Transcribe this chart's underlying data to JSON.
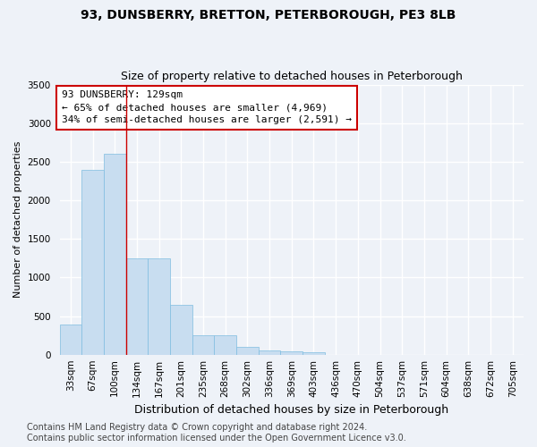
{
  "title": "93, DUNSBERRY, BRETTON, PETERBOROUGH, PE3 8LB",
  "subtitle": "Size of property relative to detached houses in Peterborough",
  "xlabel": "Distribution of detached houses by size in Peterborough",
  "ylabel": "Number of detached properties",
  "bar_labels": [
    "33sqm",
    "67sqm",
    "100sqm",
    "134sqm",
    "167sqm",
    "201sqm",
    "235sqm",
    "268sqm",
    "302sqm",
    "336sqm",
    "369sqm",
    "403sqm",
    "436sqm",
    "470sqm",
    "504sqm",
    "537sqm",
    "571sqm",
    "604sqm",
    "638sqm",
    "672sqm",
    "705sqm"
  ],
  "bar_values": [
    390,
    2400,
    2600,
    1250,
    1250,
    650,
    250,
    250,
    100,
    55,
    40,
    35,
    0,
    0,
    0,
    0,
    0,
    0,
    0,
    0,
    0
  ],
  "bar_color": "#c8ddf0",
  "bar_edge_color": "#7fbde0",
  "background_color": "#eef2f8",
  "grid_color": "#ffffff",
  "vline_x": 3,
  "vline_color": "#cc0000",
  "ylim_max": 3500,
  "yticks": [
    0,
    500,
    1000,
    1500,
    2000,
    2500,
    3000,
    3500
  ],
  "annotation_text": "93 DUNSBERRY: 129sqm\n← 65% of detached houses are smaller (4,969)\n34% of semi-detached houses are larger (2,591) →",
  "annotation_box_facecolor": "#ffffff",
  "annotation_box_edgecolor": "#cc0000",
  "footer_text": "Contains HM Land Registry data © Crown copyright and database right 2024.\nContains public sector information licensed under the Open Government Licence v3.0.",
  "title_fontsize": 10,
  "subtitle_fontsize": 9,
  "ylabel_fontsize": 8,
  "xlabel_fontsize": 9,
  "tick_fontsize": 7.5,
  "annotation_fontsize": 8,
  "footer_fontsize": 7
}
